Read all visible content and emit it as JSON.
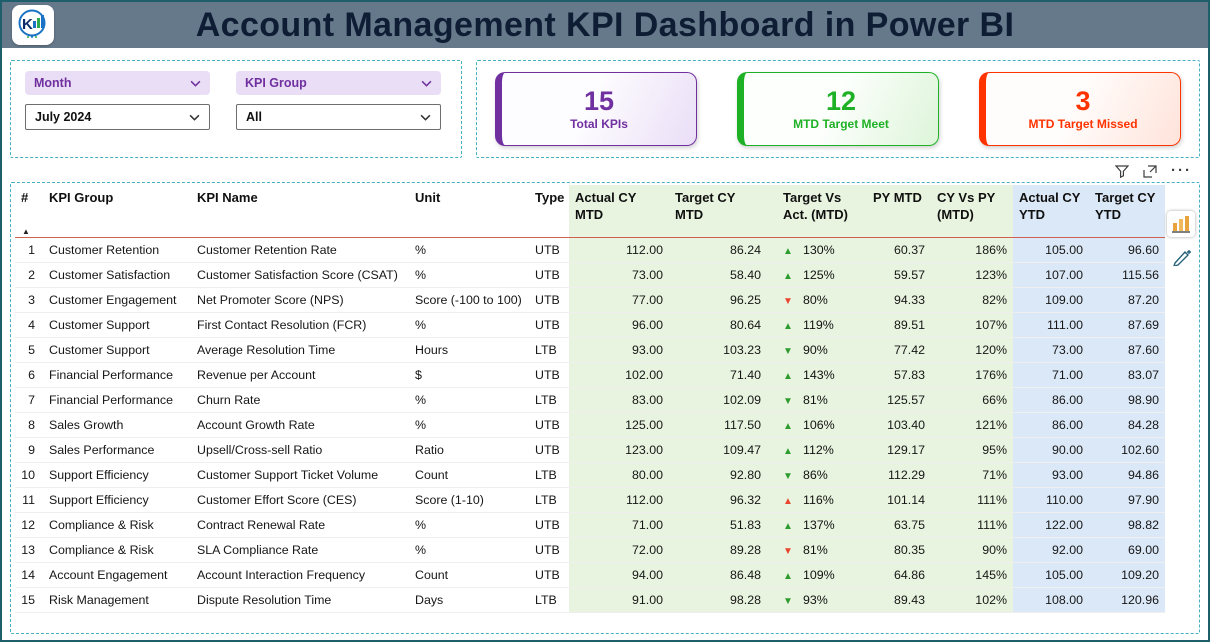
{
  "header": {
    "title": "Account Management KPI Dashboard in Power BI"
  },
  "filters": {
    "month": {
      "label": "Month",
      "value": "July 2024"
    },
    "kpi_group": {
      "label": "KPI Group",
      "value": "All"
    }
  },
  "cards": [
    {
      "value": "15",
      "label": "Total KPIs",
      "accent": "#7030a0"
    },
    {
      "value": "12",
      "label": "MTD Target Meet",
      "accent": "#1fb125"
    },
    {
      "value": "3",
      "label": "MTD Target Missed",
      "accent": "#ff3300"
    }
  ],
  "toolbar": {
    "more_glyph": "···"
  },
  "icons": {
    "sort_ascending": "▲",
    "up_arrow": "▲",
    "down_arrow": "▼"
  },
  "status_colors": {
    "good": "#2e9b2e",
    "bad": "#e8442e"
  },
  "table": {
    "columns": [
      "#",
      "KPI Group",
      "KPI Name",
      "Unit",
      "Type",
      "Actual CY MTD",
      "Target CY MTD",
      "Target Vs Act. (MTD)",
      "PY MTD",
      "CY Vs PY (MTD)",
      "Actual CY YTD",
      "Target CY YTD"
    ],
    "rows": [
      {
        "n": "1",
        "group": "Customer Retention",
        "name": "Customer Retention Rate",
        "unit": "%",
        "type": "UTB",
        "actual_mtd": "112.00",
        "target_mtd": "86.24",
        "tva_dir": "up",
        "tva_status": "good",
        "tva_pct": "130%",
        "py_mtd": "60.37",
        "cy_vs_py": "186%",
        "actual_ytd": "105.00",
        "target_ytd": "96.60"
      },
      {
        "n": "2",
        "group": "Customer Satisfaction",
        "name": "Customer Satisfaction Score (CSAT)",
        "unit": "%",
        "type": "UTB",
        "actual_mtd": "73.00",
        "target_mtd": "58.40",
        "tva_dir": "up",
        "tva_status": "good",
        "tva_pct": "125%",
        "py_mtd": "59.57",
        "cy_vs_py": "123%",
        "actual_ytd": "107.00",
        "target_ytd": "115.56"
      },
      {
        "n": "3",
        "group": "Customer Engagement",
        "name": "Net Promoter Score (NPS)",
        "unit": "Score (-100 to 100)",
        "type": "UTB",
        "actual_mtd": "77.00",
        "target_mtd": "96.25",
        "tva_dir": "down",
        "tva_status": "bad",
        "tva_pct": "80%",
        "py_mtd": "94.33",
        "cy_vs_py": "82%",
        "actual_ytd": "109.00",
        "target_ytd": "87.20"
      },
      {
        "n": "4",
        "group": "Customer Support",
        "name": "First Contact Resolution (FCR)",
        "unit": "%",
        "type": "UTB",
        "actual_mtd": "96.00",
        "target_mtd": "80.64",
        "tva_dir": "up",
        "tva_status": "good",
        "tva_pct": "119%",
        "py_mtd": "89.51",
        "cy_vs_py": "107%",
        "actual_ytd": "111.00",
        "target_ytd": "87.69"
      },
      {
        "n": "5",
        "group": "Customer Support",
        "name": "Average Resolution Time",
        "unit": "Hours",
        "type": "LTB",
        "actual_mtd": "93.00",
        "target_mtd": "103.23",
        "tva_dir": "down",
        "tva_status": "good",
        "tva_pct": "90%",
        "py_mtd": "77.42",
        "cy_vs_py": "120%",
        "actual_ytd": "73.00",
        "target_ytd": "87.60"
      },
      {
        "n": "6",
        "group": "Financial Performance",
        "name": "Revenue per Account",
        "unit": "$",
        "type": "UTB",
        "actual_mtd": "102.00",
        "target_mtd": "71.40",
        "tva_dir": "up",
        "tva_status": "good",
        "tva_pct": "143%",
        "py_mtd": "57.83",
        "cy_vs_py": "176%",
        "actual_ytd": "71.00",
        "target_ytd": "83.07"
      },
      {
        "n": "7",
        "group": "Financial Performance",
        "name": "Churn Rate",
        "unit": "%",
        "type": "LTB",
        "actual_mtd": "83.00",
        "target_mtd": "102.09",
        "tva_dir": "down",
        "tva_status": "good",
        "tva_pct": "81%",
        "py_mtd": "125.57",
        "cy_vs_py": "66%",
        "actual_ytd": "86.00",
        "target_ytd": "98.90"
      },
      {
        "n": "8",
        "group": "Sales Growth",
        "name": "Account Growth Rate",
        "unit": "%",
        "type": "UTB",
        "actual_mtd": "125.00",
        "target_mtd": "117.50",
        "tva_dir": "up",
        "tva_status": "good",
        "tva_pct": "106%",
        "py_mtd": "103.40",
        "cy_vs_py": "121%",
        "actual_ytd": "86.00",
        "target_ytd": "84.28"
      },
      {
        "n": "9",
        "group": "Sales Performance",
        "name": "Upsell/Cross-sell Ratio",
        "unit": "Ratio",
        "type": "UTB",
        "actual_mtd": "123.00",
        "target_mtd": "109.47",
        "tva_dir": "up",
        "tva_status": "good",
        "tva_pct": "112%",
        "py_mtd": "129.17",
        "cy_vs_py": "95%",
        "actual_ytd": "90.00",
        "target_ytd": "102.60"
      },
      {
        "n": "10",
        "group": "Support Efficiency",
        "name": "Customer Support Ticket Volume",
        "unit": "Count",
        "type": "LTB",
        "actual_mtd": "80.00",
        "target_mtd": "92.80",
        "tva_dir": "down",
        "tva_status": "good",
        "tva_pct": "86%",
        "py_mtd": "112.29",
        "cy_vs_py": "71%",
        "actual_ytd": "93.00",
        "target_ytd": "94.86"
      },
      {
        "n": "11",
        "group": "Support Efficiency",
        "name": "Customer Effort Score (CES)",
        "unit": "Score (1-10)",
        "type": "LTB",
        "actual_mtd": "112.00",
        "target_mtd": "96.32",
        "tva_dir": "up",
        "tva_status": "bad",
        "tva_pct": "116%",
        "py_mtd": "101.14",
        "cy_vs_py": "111%",
        "actual_ytd": "110.00",
        "target_ytd": "97.90"
      },
      {
        "n": "12",
        "group": "Compliance & Risk",
        "name": "Contract Renewal Rate",
        "unit": "%",
        "type": "UTB",
        "actual_mtd": "71.00",
        "target_mtd": "51.83",
        "tva_dir": "up",
        "tva_status": "good",
        "tva_pct": "137%",
        "py_mtd": "63.75",
        "cy_vs_py": "111%",
        "actual_ytd": "122.00",
        "target_ytd": "98.82"
      },
      {
        "n": "13",
        "group": "Compliance & Risk",
        "name": "SLA Compliance Rate",
        "unit": "%",
        "type": "UTB",
        "actual_mtd": "72.00",
        "target_mtd": "89.28",
        "tva_dir": "down",
        "tva_status": "bad",
        "tva_pct": "81%",
        "py_mtd": "80.35",
        "cy_vs_py": "90%",
        "actual_ytd": "92.00",
        "target_ytd": "69.00"
      },
      {
        "n": "14",
        "group": "Account Engagement",
        "name": "Account Interaction Frequency",
        "unit": "Count",
        "type": "UTB",
        "actual_mtd": "94.00",
        "target_mtd": "86.48",
        "tva_dir": "up",
        "tva_status": "good",
        "tva_pct": "109%",
        "py_mtd": "64.86",
        "cy_vs_py": "145%",
        "actual_ytd": "105.00",
        "target_ytd": "109.20"
      },
      {
        "n": "15",
        "group": "Risk Management",
        "name": "Dispute Resolution Time",
        "unit": "Days",
        "type": "LTB",
        "actual_mtd": "91.00",
        "target_mtd": "98.28",
        "tva_dir": "down",
        "tva_status": "good",
        "tva_pct": "93%",
        "py_mtd": "89.43",
        "cy_vs_py": "102%",
        "actual_ytd": "108.00",
        "target_ytd": "120.96"
      }
    ]
  }
}
